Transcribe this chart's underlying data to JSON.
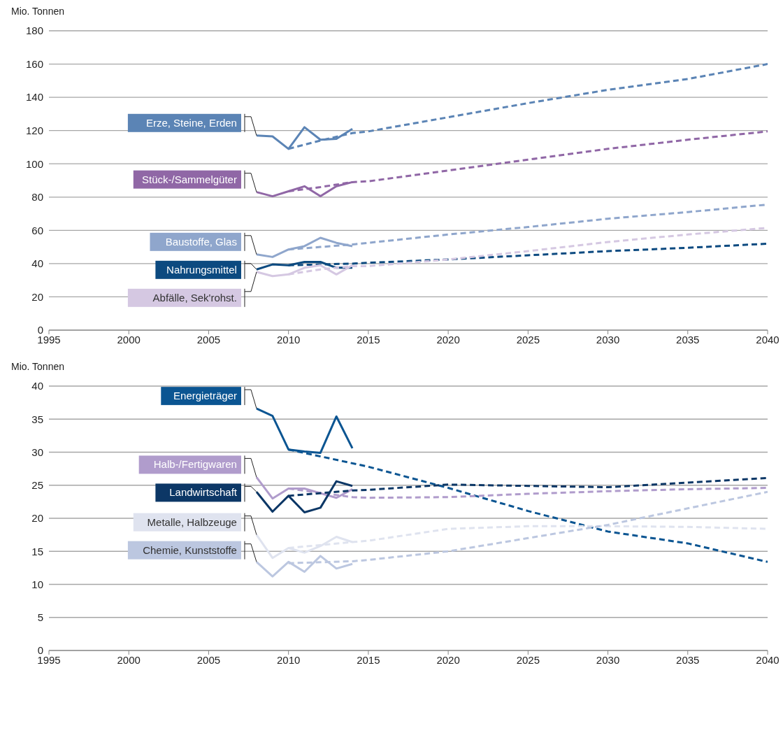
{
  "chart_data": [
    {
      "type": "line",
      "ylabel": "Mio. Tonnen",
      "xlim": [
        1995,
        2040
      ],
      "xticks": [
        1995,
        2000,
        2005,
        2010,
        2015,
        2020,
        2025,
        2030,
        2035,
        2040
      ],
      "ylim": [
        0,
        180
      ],
      "yticks": [
        0,
        20,
        40,
        60,
        80,
        100,
        120,
        140,
        160,
        180
      ],
      "grid": "y",
      "series": [
        {
          "name": "Erze, Steine, Erden",
          "color": "#5b84b5",
          "line_style": "solid",
          "x": [
            2008,
            2009,
            2010,
            2011,
            2012,
            2013,
            2014
          ],
          "values": [
            117,
            116.5,
            109,
            122,
            114.5,
            115,
            121
          ]
        },
        {
          "color": "#5b84b5",
          "line_style": "dashed",
          "x": [
            2010,
            2012,
            2014,
            2015,
            2020,
            2025,
            2030,
            2035,
            2040
          ],
          "values": [
            109,
            114,
            118.5,
            119.5,
            128,
            136.5,
            144.5,
            151,
            160
          ]
        },
        {
          "name": "Stück-/Sammelgüter",
          "color": "#9067a6",
          "line_style": "solid",
          "x": [
            2008,
            2009,
            2010,
            2011,
            2012,
            2013,
            2014
          ],
          "values": [
            83,
            80.5,
            83.5,
            86.5,
            80.5,
            86.5,
            89
          ]
        },
        {
          "color": "#9067a6",
          "line_style": "dashed",
          "x": [
            2010,
            2012,
            2014,
            2015,
            2020,
            2025,
            2030,
            2035,
            2040
          ],
          "values": [
            83.5,
            86,
            89,
            89.5,
            96,
            102.5,
            109,
            114.5,
            119.5
          ]
        },
        {
          "name": "Baustoffe, Glas",
          "color": "#8fa6cc",
          "line_style": "solid",
          "x": [
            2008,
            2009,
            2010,
            2011,
            2012,
            2013,
            2014
          ],
          "values": [
            45.5,
            44,
            48.5,
            50.5,
            55.5,
            52.5,
            50.5
          ]
        },
        {
          "color": "#8fa6cc",
          "line_style": "dashed",
          "x": [
            2010,
            2012,
            2014,
            2015,
            2020,
            2025,
            2030,
            2035,
            2040
          ],
          "values": [
            48.5,
            50,
            51.5,
            52.5,
            57.5,
            62,
            67,
            71,
            75.5
          ]
        },
        {
          "name": "Nahrungsmittel",
          "color": "#0c4a80",
          "line_style": "solid",
          "x": [
            2008,
            2009,
            2010,
            2011,
            2012,
            2013,
            2014
          ],
          "values": [
            36.5,
            39.5,
            39,
            41,
            41,
            37.5,
            37.5
          ]
        },
        {
          "color": "#0c4a80",
          "line_style": "dashed",
          "x": [
            2010,
            2012,
            2014,
            2015,
            2020,
            2025,
            2030,
            2035,
            2040
          ],
          "values": [
            39,
            39.5,
            40,
            40.5,
            42.5,
            45,
            47.5,
            49.5,
            52
          ]
        },
        {
          "name": "Abfälle, Sek'rohst.",
          "color": "#d5c8e2",
          "line_style": "solid",
          "x": [
            2008,
            2009,
            2010,
            2011,
            2012,
            2013,
            2014
          ],
          "values": [
            35,
            32.5,
            33.5,
            37.5,
            39,
            33.5,
            39
          ]
        },
        {
          "color": "#d5c8e2",
          "line_style": "dashed",
          "x": [
            2010,
            2012,
            2014,
            2015,
            2020,
            2025,
            2030,
            2035,
            2040
          ],
          "values": [
            33.5,
            36.5,
            38.5,
            38.5,
            42.5,
            47.5,
            53,
            57.5,
            61.5
          ]
        }
      ]
    },
    {
      "type": "line",
      "ylabel": "Mio. Tonnen",
      "xlim": [
        1995,
        2040
      ],
      "xticks": [
        1995,
        2000,
        2005,
        2010,
        2015,
        2020,
        2025,
        2030,
        2035,
        2040
      ],
      "ylim": [
        0,
        40
      ],
      "yticks": [
        0,
        5,
        10,
        15,
        20,
        25,
        30,
        35,
        40
      ],
      "grid": "y",
      "series": [
        {
          "name": "Energieträger",
          "color": "#0b5592",
          "line_style": "solid",
          "x": [
            2008,
            2009,
            2010,
            2011,
            2012,
            2013,
            2014
          ],
          "values": [
            36.6,
            35.5,
            30.4,
            30.1,
            29.9,
            35.4,
            30.6
          ]
        },
        {
          "color": "#0b5592",
          "line_style": "dashed",
          "x": [
            2010,
            2015,
            2020,
            2025,
            2030,
            2035,
            2040
          ],
          "values": [
            30.4,
            27.8,
            24.6,
            21.1,
            18,
            16.2,
            13.4
          ]
        },
        {
          "name": "Halb-/Fertigwaren",
          "color": "#b09ccc",
          "line_style": "solid",
          "x": [
            2008,
            2009,
            2010,
            2011,
            2012,
            2013,
            2014
          ],
          "values": [
            26.2,
            23,
            24.5,
            24.5,
            23.8,
            23.1,
            24.4
          ]
        },
        {
          "color": "#b09ccc",
          "line_style": "dashed",
          "x": [
            2010,
            2014,
            2015,
            2020,
            2025,
            2030,
            2035,
            2040
          ],
          "values": [
            24.5,
            23.2,
            23.1,
            23.2,
            23.7,
            24.1,
            24.4,
            24.6
          ]
        },
        {
          "name": "Landwirtschaft",
          "color": "#0c3766",
          "line_style": "solid",
          "x": [
            2008,
            2009,
            2010,
            2011,
            2012,
            2013,
            2014
          ],
          "values": [
            24,
            21,
            23.4,
            20.9,
            21.6,
            25.6,
            24.9
          ]
        },
        {
          "color": "#0c3766",
          "line_style": "dashed",
          "x": [
            2010,
            2014,
            2015,
            2020,
            2025,
            2030,
            2035,
            2040
          ],
          "values": [
            23.4,
            24.2,
            24.3,
            25.1,
            24.9,
            24.7,
            25.4,
            26.1
          ]
        },
        {
          "name": "Metalle, Halbzeuge",
          "color": "#dfe3ef",
          "line_style": "solid",
          "x": [
            2008,
            2009,
            2010,
            2011,
            2012,
            2013,
            2014
          ],
          "values": [
            17.5,
            14,
            15.5,
            14.8,
            15.8,
            17.2,
            16.4
          ]
        },
        {
          "color": "#dfe3ef",
          "line_style": "dashed",
          "x": [
            2010,
            2014,
            2015,
            2020,
            2025,
            2030,
            2035,
            2040
          ],
          "values": [
            15.5,
            16.4,
            16.6,
            18.4,
            18.8,
            18.8,
            18.7,
            18.4
          ]
        },
        {
          "name": "Chemie, Kunststoffe",
          "color": "#bcc7e0",
          "line_style": "solid",
          "x": [
            2008,
            2009,
            2010,
            2011,
            2012,
            2013,
            2014
          ],
          "values": [
            13.4,
            11.2,
            13.4,
            11.9,
            14.3,
            12.4,
            13.1
          ]
        },
        {
          "color": "#bcc7e0",
          "line_style": "dashed",
          "x": [
            2010,
            2014,
            2015,
            2020,
            2025,
            2030,
            2035,
            2040
          ],
          "values": [
            13.2,
            13.5,
            13.7,
            15,
            17,
            19,
            21.5,
            24
          ]
        }
      ]
    }
  ]
}
